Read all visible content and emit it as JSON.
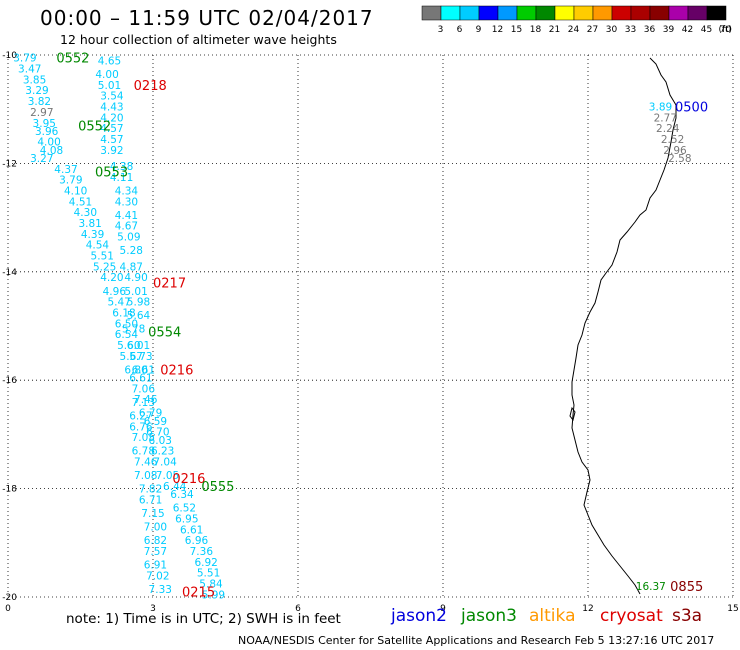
{
  "title": "00:00 – 11:59 UTC 02/04/2017",
  "subtitle": "12 hour collection of altimeter wave heights",
  "note": "note: 1) Time is in UTC; 2) SWH is in feet",
  "credit": "NOAA/NESDIS Center for Satellite Applications and Research   Feb  5 13:27:16 UTC 2017",
  "missions": [
    {
      "name": "jason2",
      "color": "#0000dd"
    },
    {
      "name": "jason3",
      "color": "#008800"
    },
    {
      "name": "altika",
      "color": "#ff9900"
    },
    {
      "name": "cryosat",
      "color": "#dd0000"
    },
    {
      "name": "s3a",
      "color": "#880000"
    }
  ],
  "colorscale": {
    "labels": [
      "3",
      "6",
      "9",
      "12",
      "15",
      "18",
      "21",
      "24",
      "27",
      "30",
      "33",
      "36",
      "39",
      "42",
      "45",
      "70"
    ],
    "unit": "(ft)",
    "colors": [
      "#777777",
      "#00ffff",
      "#00ccff",
      "#0000ff",
      "#0099ff",
      "#00cc00",
      "#008800",
      "#ffff00",
      "#ffcc00",
      "#ff9900",
      "#cc0000",
      "#aa0000",
      "#880000",
      "#aa00aa",
      "#660066",
      "#000000"
    ]
  },
  "chart_data": {
    "type": "scatter",
    "xlim": [
      0,
      15
    ],
    "ylim": [
      -20,
      -10
    ],
    "xticks": [
      "0",
      "3",
      "6",
      "9",
      "12",
      "15"
    ],
    "yticks": [
      "-10",
      "-12",
      "-14",
      "-16",
      "-18",
      "-20"
    ],
    "grid": "dotted",
    "track_labels": [
      {
        "text": "0552",
        "x": 1.0,
        "y": -10.05,
        "color": "#008800"
      },
      {
        "text": "0218",
        "x": 2.6,
        "y": -10.55,
        "color": "#dd0000"
      },
      {
        "text": "0552",
        "x": 1.45,
        "y": -11.3,
        "color": "#008800"
      },
      {
        "text": "0553",
        "x": 1.8,
        "y": -12.15,
        "color": "#008800"
      },
      {
        "text": "0217",
        "x": 3.0,
        "y": -14.2,
        "color": "#dd0000"
      },
      {
        "text": "0554",
        "x": 2.9,
        "y": -15.1,
        "color": "#008800"
      },
      {
        "text": "0216",
        "x": 3.15,
        "y": -15.8,
        "color": "#dd0000"
      },
      {
        "text": "0216",
        "x": 3.4,
        "y": -17.8,
        "color": "#dd0000"
      },
      {
        "text": "0555",
        "x": 4.0,
        "y": -17.95,
        "color": "#008800"
      },
      {
        "text": "0215",
        "x": 3.6,
        "y": -19.9,
        "color": "#dd0000"
      },
      {
        "text": "0500",
        "x": 13.8,
        "y": -10.95,
        "color": "#0000dd"
      },
      {
        "text": "0855",
        "x": 13.7,
        "y": -19.8,
        "color": "#880000"
      }
    ],
    "swh_points": [
      {
        "text": "3.79",
        "x": 0.35,
        "y": -10.05,
        "color": "#00ccff"
      },
      {
        "text": "4.65",
        "x": 2.1,
        "y": -10.1,
        "color": "#00ccff"
      },
      {
        "text": "3.47",
        "x": 0.45,
        "y": -10.25,
        "color": "#00ccff"
      },
      {
        "text": "4.00",
        "x": 2.05,
        "y": -10.35,
        "color": "#00ccff"
      },
      {
        "text": "3.85",
        "x": 0.55,
        "y": -10.45,
        "color": "#00ccff"
      },
      {
        "text": "5.01",
        "x": 2.1,
        "y": -10.55,
        "color": "#00ccff"
      },
      {
        "text": "3.29",
        "x": 0.6,
        "y": -10.65,
        "color": "#00ccff"
      },
      {
        "text": "3.54",
        "x": 2.15,
        "y": -10.75,
        "color": "#00ccff"
      },
      {
        "text": "3.82",
        "x": 0.65,
        "y": -10.85,
        "color": "#00ccff"
      },
      {
        "text": "2.97",
        "x": 0.7,
        "y": -11.05,
        "color": "#777777"
      },
      {
        "text": "4.43",
        "x": 2.15,
        "y": -10.95,
        "color": "#00ccff"
      },
      {
        "text": "3.95",
        "x": 0.75,
        "y": -11.25,
        "color": "#00ccff"
      },
      {
        "text": "4.20",
        "x": 2.15,
        "y": -11.15,
        "color": "#00ccff"
      },
      {
        "text": "3.96",
        "x": 0.8,
        "y": -11.4,
        "color": "#00ccff"
      },
      {
        "text": "4.57",
        "x": 2.15,
        "y": -11.35,
        "color": "#00ccff"
      },
      {
        "text": "4.00",
        "x": 0.85,
        "y": -11.6,
        "color": "#00ccff"
      },
      {
        "text": "4.57",
        "x": 2.15,
        "y": -11.55,
        "color": "#00ccff"
      },
      {
        "text": "4.08",
        "x": 0.9,
        "y": -11.75,
        "color": "#00ccff"
      },
      {
        "text": "3.92",
        "x": 2.15,
        "y": -11.75,
        "color": "#00ccff"
      },
      {
        "text": "3.27",
        "x": 0.7,
        "y": -11.9,
        "color": "#00ccff"
      },
      {
        "text": "4.37",
        "x": 1.2,
        "y": -12.1,
        "color": "#00ccff"
      },
      {
        "text": "4.38",
        "x": 2.35,
        "y": -12.05,
        "color": "#00ccff"
      },
      {
        "text": "3.79",
        "x": 1.3,
        "y": -12.3,
        "color": "#00ccff"
      },
      {
        "text": "4.11",
        "x": 2.35,
        "y": -12.25,
        "color": "#00ccff"
      },
      {
        "text": "4.10",
        "x": 1.4,
        "y": -12.5,
        "color": "#00ccff"
      },
      {
        "text": "4.34",
        "x": 2.45,
        "y": -12.5,
        "color": "#00ccff"
      },
      {
        "text": "4.51",
        "x": 1.5,
        "y": -12.7,
        "color": "#00ccff"
      },
      {
        "text": "4.30",
        "x": 2.45,
        "y": -12.7,
        "color": "#00ccff"
      },
      {
        "text": "4.30",
        "x": 1.6,
        "y": -12.9,
        "color": "#00ccff"
      },
      {
        "text": "4.41",
        "x": 2.45,
        "y": -12.95,
        "color": "#00ccff"
      },
      {
        "text": "3.81",
        "x": 1.7,
        "y": -13.1,
        "color": "#00ccff"
      },
      {
        "text": "4.67",
        "x": 2.45,
        "y": -13.15,
        "color": "#00ccff"
      },
      {
        "text": "4.39",
        "x": 1.75,
        "y": -13.3,
        "color": "#00ccff"
      },
      {
        "text": "5.09",
        "x": 2.5,
        "y": -13.35,
        "color": "#00ccff"
      },
      {
        "text": "4.54",
        "x": 1.85,
        "y": -13.5,
        "color": "#00ccff"
      },
      {
        "text": "5.28",
        "x": 2.55,
        "y": -13.6,
        "color": "#00ccff"
      },
      {
        "text": "5.51",
        "x": 1.95,
        "y": -13.7,
        "color": "#00ccff"
      },
      {
        "text": "5.25",
        "x": 2.0,
        "y": -13.9,
        "color": "#00ccff"
      },
      {
        "text": "4.87",
        "x": 2.55,
        "y": -13.9,
        "color": "#00ccff"
      },
      {
        "text": "4.20",
        "x": 2.15,
        "y": -14.1,
        "color": "#00ccff"
      },
      {
        "text": "4.90",
        "x": 2.65,
        "y": -14.1,
        "color": "#00ccff"
      },
      {
        "text": "4.96",
        "x": 2.2,
        "y": -14.35,
        "color": "#00ccff"
      },
      {
        "text": "5.01",
        "x": 2.65,
        "y": -14.35,
        "color": "#00ccff"
      },
      {
        "text": "5.47",
        "x": 2.3,
        "y": -14.55,
        "color": "#00ccff"
      },
      {
        "text": "5.98",
        "x": 2.7,
        "y": -14.55,
        "color": "#00ccff"
      },
      {
        "text": "6.18",
        "x": 2.4,
        "y": -14.75,
        "color": "#00ccff"
      },
      {
        "text": "5.64",
        "x": 2.7,
        "y": -14.8,
        "color": "#00ccff"
      },
      {
        "text": "6.50",
        "x": 2.45,
        "y": -14.95,
        "color": "#00ccff"
      },
      {
        "text": "5.78",
        "x": 2.6,
        "y": -15.05,
        "color": "#00ccff"
      },
      {
        "text": "6.54",
        "x": 2.45,
        "y": -15.15,
        "color": "#00ccff"
      },
      {
        "text": "6.01",
        "x": 2.7,
        "y": -15.35,
        "color": "#00ccff"
      },
      {
        "text": "5.60",
        "x": 2.5,
        "y": -15.35,
        "color": "#00ccff"
      },
      {
        "text": "5.73",
        "x": 2.75,
        "y": -15.55,
        "color": "#00ccff"
      },
      {
        "text": "5.67",
        "x": 2.55,
        "y": -15.55,
        "color": "#00ccff"
      },
      {
        "text": "6.80",
        "x": 2.65,
        "y": -15.8,
        "color": "#00ccff"
      },
      {
        "text": "6.61",
        "x": 2.8,
        "y": -15.8,
        "color": "#00ccff"
      },
      {
        "text": "6.61",
        "x": 2.75,
        "y": -15.95,
        "color": "#00ccff"
      },
      {
        "text": "7.06",
        "x": 2.8,
        "y": -16.15,
        "color": "#00ccff"
      },
      {
        "text": "7.46",
        "x": 2.85,
        "y": -16.35,
        "color": "#00ccff"
      },
      {
        "text": "7.13",
        "x": 2.8,
        "y": -16.4,
        "color": "#00ccff"
      },
      {
        "text": "6.79",
        "x": 2.95,
        "y": -16.6,
        "color": "#00ccff"
      },
      {
        "text": "6.27",
        "x": 2.75,
        "y": -16.65,
        "color": "#00ccff"
      },
      {
        "text": "6.59",
        "x": 3.05,
        "y": -16.75,
        "color": "#00ccff"
      },
      {
        "text": "6.76",
        "x": 2.75,
        "y": -16.85,
        "color": "#00ccff"
      },
      {
        "text": "6.70",
        "x": 3.1,
        "y": -16.95,
        "color": "#00ccff"
      },
      {
        "text": "7.05",
        "x": 2.8,
        "y": -17.05,
        "color": "#00ccff"
      },
      {
        "text": "6.03",
        "x": 3.15,
        "y": -17.1,
        "color": "#00ccff"
      },
      {
        "text": "6.78",
        "x": 2.8,
        "y": -17.3,
        "color": "#00ccff"
      },
      {
        "text": "6.23",
        "x": 3.2,
        "y": -17.3,
        "color": "#00ccff"
      },
      {
        "text": "7.46",
        "x": 2.85,
        "y": -17.5,
        "color": "#00ccff"
      },
      {
        "text": "7.04",
        "x": 3.25,
        "y": -17.5,
        "color": "#00ccff"
      },
      {
        "text": "7.08",
        "x": 2.85,
        "y": -17.75,
        "color": "#00ccff"
      },
      {
        "text": "7.05",
        "x": 3.3,
        "y": -17.75,
        "color": "#00ccff"
      },
      {
        "text": "7.82",
        "x": 2.95,
        "y": -18.0,
        "color": "#00ccff"
      },
      {
        "text": "6.44",
        "x": 3.45,
        "y": -17.95,
        "color": "#00ccff"
      },
      {
        "text": "6.34",
        "x": 3.6,
        "y": -18.1,
        "color": "#00ccff"
      },
      {
        "text": "6.71",
        "x": 2.95,
        "y": -18.2,
        "color": "#00ccff"
      },
      {
        "text": "6.52",
        "x": 3.65,
        "y": -18.35,
        "color": "#00ccff"
      },
      {
        "text": "7.15",
        "x": 3.0,
        "y": -18.45,
        "color": "#00ccff"
      },
      {
        "text": "6.95",
        "x": 3.7,
        "y": -18.55,
        "color": "#00ccff"
      },
      {
        "text": "7.00",
        "x": 3.05,
        "y": -18.7,
        "color": "#00ccff"
      },
      {
        "text": "6.61",
        "x": 3.8,
        "y": -18.75,
        "color": "#00ccff"
      },
      {
        "text": "6.82",
        "x": 3.05,
        "y": -18.95,
        "color": "#00ccff"
      },
      {
        "text": "6.96",
        "x": 3.9,
        "y": -18.95,
        "color": "#00ccff"
      },
      {
        "text": "7.57",
        "x": 3.05,
        "y": -19.15,
        "color": "#00ccff"
      },
      {
        "text": "7.36",
        "x": 4.0,
        "y": -19.15,
        "color": "#00ccff"
      },
      {
        "text": "6.91",
        "x": 3.05,
        "y": -19.4,
        "color": "#00ccff"
      },
      {
        "text": "6.92",
        "x": 4.1,
        "y": -19.35,
        "color": "#00ccff"
      },
      {
        "text": "5.51",
        "x": 4.15,
        "y": -19.55,
        "color": "#00ccff"
      },
      {
        "text": "7.02",
        "x": 3.1,
        "y": -19.6,
        "color": "#00ccff"
      },
      {
        "text": "5.84",
        "x": 4.2,
        "y": -19.75,
        "color": "#00ccff"
      },
      {
        "text": "7.33",
        "x": 3.15,
        "y": -19.85,
        "color": "#00ccff"
      },
      {
        "text": "5.99",
        "x": 4.25,
        "y": -19.95,
        "color": "#00ccff"
      },
      {
        "text": "3.89",
        "x": 13.5,
        "y": -10.95,
        "color": "#00ccff"
      },
      {
        "text": "2.77",
        "x": 13.6,
        "y": -11.15,
        "color": "#777777"
      },
      {
        "text": "2.24",
        "x": 13.65,
        "y": -11.35,
        "color": "#777777"
      },
      {
        "text": "2.52",
        "x": 13.75,
        "y": -11.55,
        "color": "#777777"
      },
      {
        "text": "2.96",
        "x": 13.8,
        "y": -11.75,
        "color": "#777777"
      },
      {
        "text": "2.58",
        "x": 13.9,
        "y": -11.9,
        "color": "#777777"
      },
      {
        "text": "16.37",
        "x": 13.3,
        "y": -19.8,
        "color": "#008800"
      }
    ]
  }
}
